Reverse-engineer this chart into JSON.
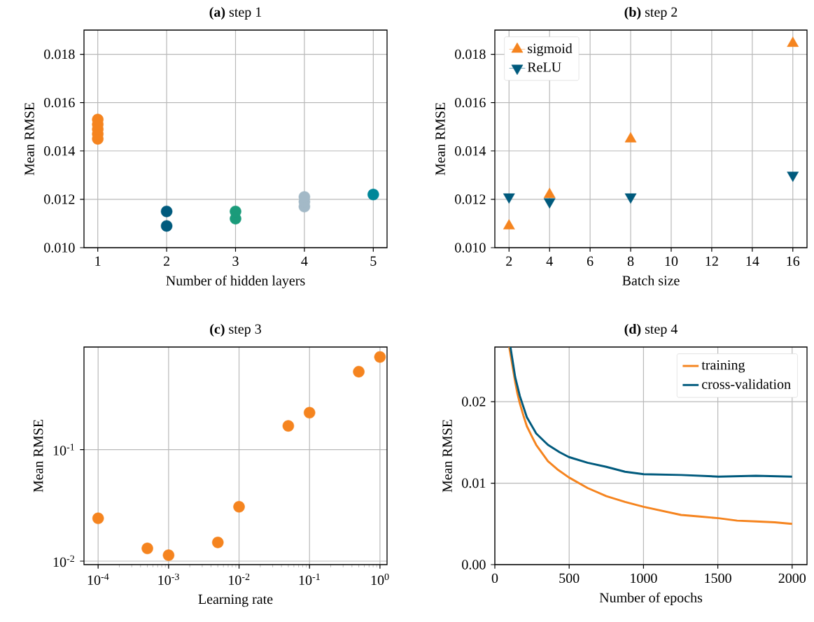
{
  "chart_data": [
    {
      "type": "scatter",
      "title": "**(a)** step 1",
      "xlabel": "Number of hidden layers",
      "ylabel": "Mean RMSE",
      "marker": "circle",
      "grid": true,
      "xlim": [
        0.8,
        5.2
      ],
      "ylim": [
        0.01,
        0.019
      ],
      "xticks": [
        1,
        2,
        3,
        4,
        5
      ],
      "yticks": [
        {
          "value": 0.01,
          "label": "0.010"
        },
        {
          "value": 0.012,
          "label": "0.012"
        },
        {
          "value": 0.014,
          "label": "0.014"
        },
        {
          "value": 0.016,
          "label": "0.016"
        },
        {
          "value": 0.018,
          "label": "0.018"
        }
      ],
      "series": [
        {
          "color": "#f5841f",
          "x": [
            1,
            1,
            1,
            1,
            1
          ],
          "values": [
            0.0145,
            0.0147,
            0.0149,
            0.0151,
            0.0153
          ]
        },
        {
          "color": "#005a7d",
          "x": [
            2,
            2
          ],
          "values": [
            0.0109,
            0.0115
          ]
        },
        {
          "color": "#1a9b7a",
          "x": [
            3,
            3
          ],
          "values": [
            0.0112,
            0.0115
          ]
        },
        {
          "color": "#a3b9c7",
          "x": [
            4,
            4,
            4
          ],
          "values": [
            0.0117,
            0.0119,
            0.0121
          ]
        },
        {
          "color": "#008799",
          "x": [
            5
          ],
          "values": [
            0.0122
          ]
        }
      ]
    },
    {
      "type": "scatter",
      "title": "**(b)** step 2",
      "xlabel": "Batch size",
      "ylabel": "Mean RMSE",
      "grid": true,
      "legend": "top left",
      "xlim": [
        1.3,
        16.7
      ],
      "ylim": [
        0.01,
        0.019
      ],
      "xticks": [
        2,
        4,
        6,
        8,
        10,
        12,
        14,
        16
      ],
      "yticks": [
        {
          "value": 0.01,
          "label": "0.010"
        },
        {
          "value": 0.012,
          "label": "0.012"
        },
        {
          "value": 0.014,
          "label": "0.014"
        },
        {
          "value": 0.016,
          "label": "0.016"
        },
        {
          "value": 0.018,
          "label": "0.018"
        }
      ],
      "series": [
        {
          "name": "sigmoid",
          "color": "#f5841f",
          "marker": "triangle",
          "x": [
            2,
            4,
            8,
            16
          ],
          "values": [
            0.0109,
            0.0122,
            0.0145,
            0.01845
          ]
        },
        {
          "name": "ReLU",
          "color": "#005a7d",
          "marker": "triangle_down",
          "x": [
            2,
            4,
            8,
            16
          ],
          "values": [
            0.0121,
            0.0119,
            0.0121,
            0.013
          ]
        }
      ]
    },
    {
      "type": "scatter",
      "title": "**(c)** step 3",
      "xlabel": "Learning rate",
      "ylabel": "Mean RMSE",
      "marker": "circle",
      "grid": true,
      "log": "xy",
      "xlim": [
        6.3e-05,
        1.26
      ],
      "ylim": [
        0.0093,
        0.83
      ],
      "xticks": [
        {
          "value": 0.0001,
          "label": "10$^{-4}$"
        },
        {
          "value": 0.001,
          "label": "10$^{-3}$"
        },
        {
          "value": 0.01,
          "label": "10$^{-2}$"
        },
        {
          "value": 0.1,
          "label": "10$^{-1}$"
        },
        {
          "value": 1,
          "label": "10$^{0}$"
        }
      ],
      "yticks": [
        {
          "value": 0.01,
          "label": "10$^{-2}$"
        },
        {
          "value": 0.1,
          "label": "10$^{-1}$"
        }
      ],
      "series": [
        {
          "color": "#f5841f",
          "x": [
            0.0001,
            0.0005,
            0.001,
            0.005,
            0.01,
            0.05,
            0.1,
            0.5,
            1
          ],
          "values": [
            0.0242,
            0.013,
            0.0113,
            0.0147,
            0.0307,
            0.163,
            0.214,
            0.499,
            0.676
          ]
        }
      ]
    },
    {
      "type": "line",
      "title": "**(d)** step 4",
      "xlabel": "Number of epochs",
      "ylabel": "Mean RMSE",
      "grid": true,
      "legend": "top right",
      "xlim": [
        0,
        2100
      ],
      "ylim": [
        0,
        0.0267
      ],
      "xticks": [
        0,
        500,
        1000,
        1500,
        2000
      ],
      "yticks": [
        {
          "value": 0,
          "label": "0.00"
        },
        {
          "value": 0.01,
          "label": "0.01"
        },
        {
          "value": 0.02,
          "label": "0.02"
        }
      ],
      "series": [
        {
          "name": "training",
          "color": "#f5841f",
          "x": [
            97,
            137,
            152,
            168,
            192,
            215,
            247,
            278,
            357,
            420,
            498,
            624,
            750,
            876,
            1001,
            1253,
            1379,
            1505,
            1630,
            1756,
            1882,
            2000
          ],
          "values": [
            0.0267,
            0.0224,
            0.021,
            0.0198,
            0.0183,
            0.017,
            0.0158,
            0.0147,
            0.0127,
            0.0117,
            0.0107,
            0.0094,
            0.0084,
            0.0077,
            0.0071,
            0.0061,
            0.0059,
            0.0057,
            0.0054,
            0.0053,
            0.0052,
            0.005
          ]
        },
        {
          "name": "cross-validation",
          "color": "#005a7d",
          "x": [
            105,
            137,
            168,
            215,
            278,
            357,
            435,
            498,
            624,
            750,
            876,
            1001,
            1253,
            1505,
            1756,
            2000
          ],
          "values": [
            0.0267,
            0.023,
            0.0207,
            0.0181,
            0.0161,
            0.0147,
            0.0138,
            0.0132,
            0.0125,
            0.012,
            0.0114,
            0.0111,
            0.011,
            0.0108,
            0.0109,
            0.0108
          ]
        }
      ]
    }
  ]
}
